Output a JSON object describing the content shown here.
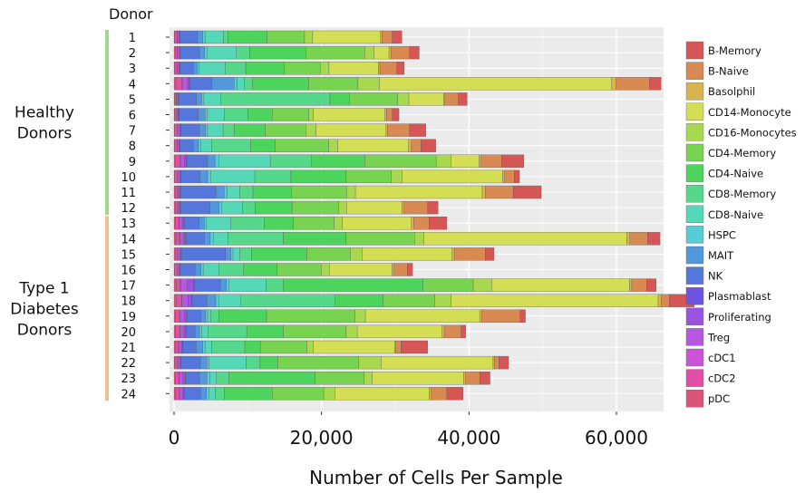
{
  "chart_data": {
    "type": "bar",
    "orientation": "horizontal",
    "stacked": true,
    "ylabel": "Donor",
    "xlabel": "Number of Cells Per Sample",
    "xlim": [
      0,
      66000
    ],
    "xticks": [
      0,
      20000,
      40000,
      60000
    ],
    "xtick_labels": [
      "0",
      "20,000",
      "40,000",
      "60,000"
    ],
    "grid": true,
    "legend_position": "right",
    "groups": [
      {
        "label": "Healthy Donors",
        "lines": [
          "Healthy",
          "Donors"
        ],
        "from": "1",
        "to": "12",
        "color": "#9fd88a"
      },
      {
        "label": "Type 1 Diabetes Donors",
        "lines": [
          "Type 1",
          "Diabetes",
          "Donors"
        ],
        "from": "13",
        "to": "24",
        "color": "#f3c191"
      }
    ],
    "categories": [
      "1",
      "2",
      "3",
      "4",
      "5",
      "6",
      "7",
      "8",
      "9",
      "10",
      "11",
      "12",
      "13",
      "14",
      "15",
      "16",
      "17",
      "18",
      "19",
      "20",
      "21",
      "22",
      "23",
      "24"
    ],
    "series": [
      {
        "name": "pDC",
        "color": "#d9547a",
        "values": [
          100,
          150,
          120,
          250,
          100,
          100,
          100,
          100,
          150,
          100,
          150,
          200,
          150,
          250,
          150,
          100,
          300,
          300,
          150,
          200,
          150,
          120,
          150,
          200
        ]
      },
      {
        "name": "cDC2",
        "color": "#e04ea6",
        "values": [
          300,
          250,
          300,
          800,
          200,
          250,
          350,
          300,
          650,
          350,
          350,
          300,
          500,
          500,
          300,
          350,
          500,
          700,
          600,
          600,
          450,
          350,
          500,
          500
        ]
      },
      {
        "name": "cDC1",
        "color": "#cc52d8",
        "values": [
          50,
          50,
          50,
          100,
          50,
          50,
          50,
          50,
          100,
          50,
          50,
          50,
          50,
          80,
          50,
          50,
          80,
          80,
          50,
          50,
          50,
          50,
          50,
          50
        ]
      },
      {
        "name": "Treg",
        "color": "#b657e2",
        "values": [
          200,
          250,
          200,
          700,
          150,
          150,
          250,
          200,
          500,
          250,
          200,
          200,
          400,
          500,
          300,
          200,
          900,
          800,
          600,
          500,
          350,
          300,
          500,
          400
        ]
      },
      {
        "name": "Proliferating",
        "color": "#9a53e0",
        "values": [
          100,
          100,
          100,
          200,
          100,
          100,
          150,
          100,
          250,
          150,
          100,
          100,
          250,
          200,
          150,
          100,
          900,
          500,
          300,
          250,
          150,
          100,
          300,
          200
        ]
      },
      {
        "name": "Plasmablast",
        "color": "#6d54e2",
        "values": [
          50,
          50,
          50,
          100,
          50,
          50,
          50,
          50,
          100,
          50,
          50,
          50,
          50,
          80,
          50,
          50,
          100,
          80,
          50,
          50,
          50,
          50,
          50,
          50
        ]
      },
      {
        "name": "NK",
        "color": "#5577dc",
        "values": [
          2400,
          2600,
          1800,
          3000,
          2400,
          2600,
          2500,
          1800,
          2800,
          2600,
          4800,
          4000,
          2000,
          2500,
          6000,
          2000,
          3500,
          2000,
          1900,
          1200,
          1800,
          2600,
          1900,
          2200
        ]
      },
      {
        "name": "MAIT",
        "color": "#5398dc",
        "values": [
          700,
          700,
          500,
          3000,
          700,
          900,
          800,
          700,
          1000,
          1000,
          1100,
          1200,
          700,
          800,
          700,
          800,
          800,
          1200,
          600,
          600,
          900,
          900,
          1000,
          800
        ]
      },
      {
        "name": "HSPC",
        "color": "#55ccd6",
        "values": [
          300,
          300,
          300,
          400,
          300,
          300,
          300,
          300,
          500,
          400,
          400,
          400,
          300,
          400,
          300,
          300,
          400,
          400,
          300,
          300,
          300,
          300,
          400,
          300
        ]
      },
      {
        "name": "CD8-Naive",
        "color": "#55d8b8",
        "values": [
          2500,
          4000,
          3500,
          1000,
          2300,
          2300,
          2100,
          1500,
          7000,
          6000,
          1700,
          2800,
          3300,
          2000,
          900,
          2100,
          5000,
          3000,
          400,
          900,
          900,
          5000,
          900,
          900
        ]
      },
      {
        "name": "CD8-Memory",
        "color": "#55d88a",
        "values": [
          600,
          1800,
          2800,
          1100,
          14800,
          3200,
          1500,
          5300,
          5600,
          4900,
          1800,
          1700,
          4500,
          7500,
          1600,
          3400,
          2300,
          12800,
          1100,
          5200,
          4500,
          1900,
          1700,
          1200
        ]
      },
      {
        "name": "CD4-Naive",
        "color": "#4dd45c",
        "values": [
          5300,
          7600,
          5200,
          7600,
          2600,
          3300,
          4200,
          3300,
          7200,
          7500,
          5200,
          5000,
          4000,
          8500,
          7500,
          4500,
          19000,
          6500,
          6500,
          5000,
          2100,
          2400,
          11700,
          6500
        ]
      },
      {
        "name": "CD4-Memory",
        "color": "#78d450",
        "values": [
          5100,
          8000,
          4900,
          6700,
          6600,
          5000,
          5500,
          7300,
          9700,
          6100,
          7500,
          6300,
          5500,
          9300,
          5900,
          6000,
          6800,
          7000,
          12000,
          8500,
          6300,
          11000,
          6600,
          7000
        ]
      },
      {
        "name": "CD16-Monocytes",
        "color": "#a8d84e",
        "values": [
          1100,
          1300,
          1200,
          2900,
          1500,
          600,
          1400,
          1200,
          2000,
          1500,
          1200,
          1100,
          1100,
          1300,
          1600,
          1100,
          2500,
          2200,
          1400,
          1500,
          900,
          3000,
          1100,
          1500
        ]
      },
      {
        "name": "CD14-Monocyte",
        "color": "#d4de55",
        "values": [
          9200,
          2000,
          6700,
          31500,
          4700,
          9700,
          9500,
          9600,
          3800,
          13600,
          17200,
          7500,
          9400,
          27500,
          12200,
          8500,
          18700,
          28100,
          15500,
          11500,
          11000,
          15200,
          12400,
          12800
        ]
      },
      {
        "name": "Basolphil",
        "color": "#d8b44e",
        "values": [
          200,
          300,
          200,
          600,
          200,
          200,
          200,
          400,
          300,
          300,
          400,
          300,
          300,
          400,
          300,
          300,
          300,
          400,
          300,
          300,
          200,
          200,
          300,
          300
        ]
      },
      {
        "name": "B-Naive",
        "color": "#d88a52",
        "values": [
          1400,
          2500,
          2300,
          4500,
          1800,
          800,
          3000,
          1300,
          2800,
          1300,
          3800,
          3200,
          2100,
          2400,
          4200,
          1800,
          2000,
          1100,
          5200,
          2300,
          700,
          600,
          1900,
          2100
        ]
      },
      {
        "name": "B-Memory",
        "color": "#d65656",
        "values": [
          1300,
          1300,
          1000,
          1600,
          1200,
          900,
          2200,
          2000,
          3000,
          700,
          3800,
          1400,
          2400,
          1700,
          1200,
          700,
          1300,
          3400,
          700,
          600,
          3600,
          1300,
          1400,
          2200
        ]
      }
    ]
  }
}
